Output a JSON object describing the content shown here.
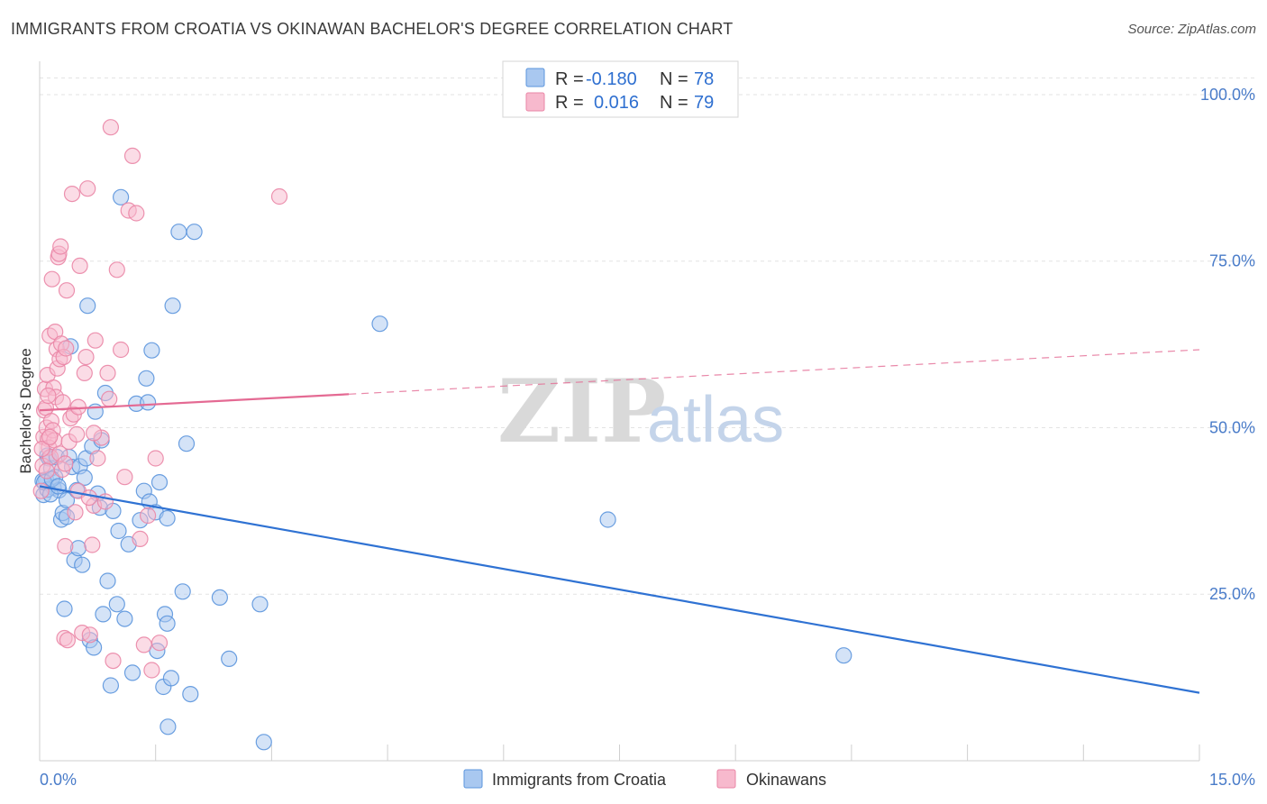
{
  "title": "IMMIGRANTS FROM CROATIA VS OKINAWAN BACHELOR'S DEGREE CORRELATION CHART",
  "source": "Source: ZipAtlas.com",
  "watermark": {
    "zip": "ZIP",
    "atlas": "atlas"
  },
  "colors": {
    "blue_fill": "#a9c8f0",
    "blue_stroke": "#5b95dd",
    "blue_line": "#2f72d3",
    "pink_fill": "#f7b9cd",
    "pink_stroke": "#ea86a6",
    "pink_line": "#e46a93",
    "grid": "#e3e3e3",
    "tick_label": "#4a7cc9"
  },
  "legend": {
    "rows": [
      {
        "r_label": "R =",
        "r_value": "-0.180",
        "n_label": "N =",
        "n_value": "78"
      },
      {
        "r_label": "R =",
        "r_value": "0.016",
        "n_label": "N =",
        "n_value": "79"
      }
    ]
  },
  "chart_data": {
    "type": "scatter",
    "title": "IMMIGRANTS FROM CROATIA VS OKINAWAN BACHELOR'S DEGREE CORRELATION CHART",
    "xlabel": "",
    "ylabel": "Bachelor's Degree",
    "xlim": [
      0,
      15
    ],
    "ylim": [
      0,
      105
    ],
    "x_tick_labels": [
      {
        "value": 0,
        "label": "0.0%"
      },
      {
        "value": 15,
        "label": "15.0%"
      }
    ],
    "y_tick_labels": [
      {
        "value": 25,
        "label": "25.0%"
      },
      {
        "value": 50,
        "label": "50.0%"
      },
      {
        "value": 75,
        "label": "75.0%"
      },
      {
        "value": 100,
        "label": "100.0%"
      }
    ],
    "x_minor_ticks": [
      1.5,
      3,
      4.5,
      6,
      7.5,
      9,
      10.5,
      12,
      13.5,
      15
    ],
    "grid": true,
    "legend_position": "top-center and bottom",
    "series": [
      {
        "name": "Immigrants from Croatia",
        "color": "blue",
        "trend": {
          "x0": 0,
          "y0": 41.2,
          "x1": 15,
          "y1": 10.2,
          "solid_until": 15
        },
        "points": [
          [
            0.05,
            39.9
          ],
          [
            0.08,
            42.2
          ],
          [
            0.1,
            45.8
          ],
          [
            0.12,
            45.4
          ],
          [
            0.15,
            43.9
          ],
          [
            0.18,
            41.0
          ],
          [
            0.2,
            42.6
          ],
          [
            0.22,
            45.6
          ],
          [
            0.25,
            40.6
          ],
          [
            0.28,
            36.2
          ],
          [
            0.3,
            37.2
          ],
          [
            0.32,
            22.8
          ],
          [
            0.35,
            39.1
          ],
          [
            0.38,
            45.6
          ],
          [
            0.4,
            62.2
          ],
          [
            0.42,
            44.1
          ],
          [
            0.45,
            30.1
          ],
          [
            0.5,
            31.9
          ],
          [
            0.52,
            44.2
          ],
          [
            0.55,
            29.4
          ],
          [
            0.58,
            42.5
          ],
          [
            0.6,
            45.4
          ],
          [
            0.62,
            68.3
          ],
          [
            0.65,
            18.1
          ],
          [
            0.68,
            47.2
          ],
          [
            0.7,
            17.0
          ],
          [
            0.72,
            52.4
          ],
          [
            0.75,
            40.1
          ],
          [
            0.78,
            38.0
          ],
          [
            0.8,
            48.1
          ],
          [
            0.82,
            22.0
          ],
          [
            0.85,
            55.2
          ],
          [
            0.88,
            27.0
          ],
          [
            0.92,
            11.3
          ],
          [
            0.95,
            37.5
          ],
          [
            1.0,
            23.5
          ],
          [
            1.02,
            34.5
          ],
          [
            1.05,
            84.6
          ],
          [
            1.1,
            21.3
          ],
          [
            1.15,
            32.5
          ],
          [
            1.2,
            13.2
          ],
          [
            1.25,
            53.6
          ],
          [
            1.3,
            36.1
          ],
          [
            1.35,
            40.5
          ],
          [
            1.38,
            57.4
          ],
          [
            1.4,
            53.8
          ],
          [
            1.42,
            38.9
          ],
          [
            1.45,
            61.6
          ],
          [
            1.5,
            37.3
          ],
          [
            1.52,
            16.5
          ],
          [
            1.55,
            41.8
          ],
          [
            1.6,
            11.1
          ],
          [
            1.62,
            22.0
          ],
          [
            1.65,
            36.4
          ],
          [
            1.7,
            12.4
          ],
          [
            1.72,
            68.3
          ],
          [
            1.65,
            20.6
          ],
          [
            1.85,
            25.4
          ],
          [
            1.8,
            79.4
          ],
          [
            1.9,
            47.6
          ],
          [
            1.95,
            10.0
          ],
          [
            2.0,
            79.4
          ],
          [
            2.33,
            24.5
          ],
          [
            2.45,
            15.3
          ],
          [
            2.85,
            23.5
          ],
          [
            2.9,
            2.8
          ],
          [
            4.4,
            65.6
          ],
          [
            7.35,
            36.2
          ],
          [
            10.4,
            15.8
          ],
          [
            0.04,
            42.0
          ],
          [
            0.1,
            40.7
          ],
          [
            0.06,
            41.8
          ],
          [
            0.14,
            40.0
          ],
          [
            0.16,
            42.3
          ],
          [
            0.24,
            41.2
          ],
          [
            1.66,
            5.1
          ],
          [
            0.48,
            40.6
          ],
          [
            0.35,
            36.6
          ]
        ]
      },
      {
        "name": "Okinawans",
        "color": "pink",
        "trend": {
          "x0": 0,
          "y0": 52.6,
          "x1": 15,
          "y1": 61.7,
          "solid_until": 4.0
        },
        "points": [
          [
            0.02,
            40.5
          ],
          [
            0.04,
            44.3
          ],
          [
            0.05,
            48.6
          ],
          [
            0.06,
            52.6
          ],
          [
            0.07,
            55.8
          ],
          [
            0.08,
            53.0
          ],
          [
            0.09,
            50.0
          ],
          [
            0.1,
            57.9
          ],
          [
            0.11,
            48.3
          ],
          [
            0.12,
            47.0
          ],
          [
            0.13,
            63.8
          ],
          [
            0.14,
            45.6
          ],
          [
            0.15,
            51.0
          ],
          [
            0.16,
            72.3
          ],
          [
            0.17,
            49.6
          ],
          [
            0.18,
            56.0
          ],
          [
            0.19,
            48.1
          ],
          [
            0.2,
            64.4
          ],
          [
            0.21,
            54.6
          ],
          [
            0.22,
            61.8
          ],
          [
            0.23,
            58.9
          ],
          [
            0.24,
            75.6
          ],
          [
            0.25,
            76.1
          ],
          [
            0.26,
            60.3
          ],
          [
            0.27,
            77.2
          ],
          [
            0.28,
            62.6
          ],
          [
            0.3,
            53.8
          ],
          [
            0.31,
            60.6
          ],
          [
            0.32,
            18.4
          ],
          [
            0.33,
            32.2
          ],
          [
            0.34,
            61.9
          ],
          [
            0.35,
            70.6
          ],
          [
            0.36,
            18.1
          ],
          [
            0.38,
            47.9
          ],
          [
            0.4,
            51.4
          ],
          [
            0.42,
            85.1
          ],
          [
            0.44,
            52.0
          ],
          [
            0.46,
            37.3
          ],
          [
            0.48,
            49.0
          ],
          [
            0.5,
            53.1
          ],
          [
            0.52,
            74.3
          ],
          [
            0.55,
            19.2
          ],
          [
            0.58,
            58.2
          ],
          [
            0.6,
            60.6
          ],
          [
            0.62,
            85.9
          ],
          [
            0.65,
            18.9
          ],
          [
            0.68,
            32.4
          ],
          [
            0.7,
            38.3
          ],
          [
            0.72,
            63.1
          ],
          [
            0.75,
            45.4
          ],
          [
            0.8,
            48.5
          ],
          [
            0.85,
            38.9
          ],
          [
            0.88,
            58.2
          ],
          [
            0.9,
            54.3
          ],
          [
            0.92,
            95.1
          ],
          [
            0.95,
            15.0
          ],
          [
            1.0,
            73.7
          ],
          [
            1.05,
            61.7
          ],
          [
            1.1,
            42.6
          ],
          [
            1.15,
            82.6
          ],
          [
            1.2,
            90.8
          ],
          [
            1.25,
            82.2
          ],
          [
            1.3,
            33.3
          ],
          [
            1.35,
            17.4
          ],
          [
            1.4,
            36.8
          ],
          [
            1.45,
            13.6
          ],
          [
            1.5,
            45.4
          ],
          [
            1.55,
            17.7
          ],
          [
            3.1,
            84.7
          ],
          [
            0.03,
            46.8
          ],
          [
            0.09,
            43.5
          ],
          [
            0.11,
            54.8
          ],
          [
            0.13,
            48.6
          ],
          [
            0.26,
            46.1
          ],
          [
            0.29,
            43.7
          ],
          [
            0.33,
            44.6
          ],
          [
            0.5,
            40.5
          ],
          [
            0.7,
            49.2
          ],
          [
            0.64,
            39.5
          ]
        ]
      }
    ]
  },
  "bottom_legend": [
    {
      "label": "Immigrants from Croatia",
      "color": "blue"
    },
    {
      "label": "Okinawans",
      "color": "pink"
    }
  ]
}
